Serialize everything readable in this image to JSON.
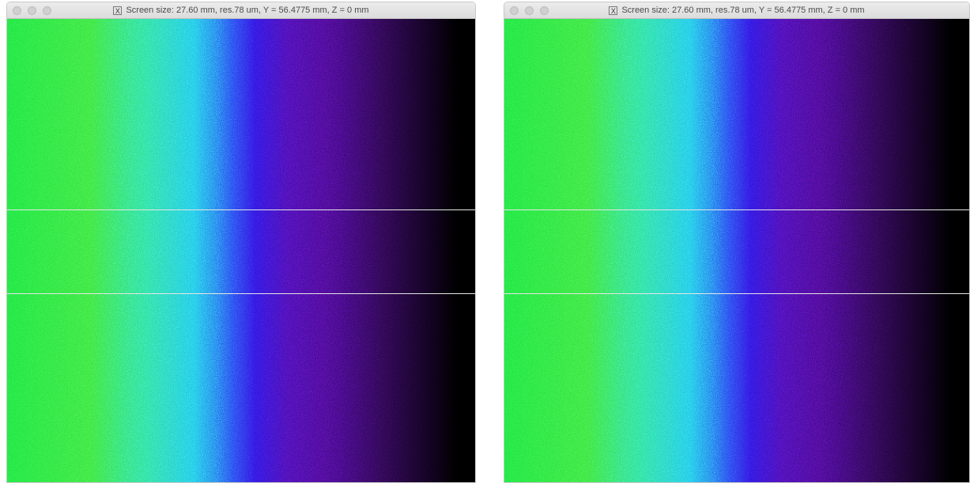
{
  "windows": [
    {
      "title": "Screen size: 27.60 mm, res.78 um, Y = 56.4775 mm, Z = 0 mm"
    },
    {
      "title": "Screen size: 27.60 mm, res.78 um, Y = 56.4775 mm, Z = 0 mm"
    }
  ]
}
